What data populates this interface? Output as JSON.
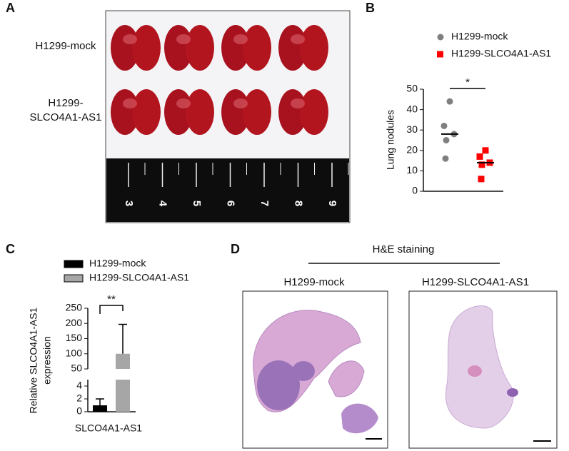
{
  "figure": {
    "panel_labels": [
      "A",
      "B",
      "C",
      "D"
    ],
    "panel_a": {
      "row_labels": [
        [
          "H1299-mock"
        ],
        [
          "H1299-",
          "SLCO4A1-AS1"
        ]
      ],
      "ruler_labels": [
        "3",
        "4",
        "5",
        "6",
        "7",
        "8",
        "9"
      ]
    },
    "panel_d": {
      "title": "H&E staining",
      "image_labels": [
        "H1299-mock",
        "H1299-SLCO4A1-AS1"
      ]
    }
  },
  "chart_data": [
    {
      "type": "scatter",
      "ylabel": "Lung nodules",
      "ylim": [
        0,
        50
      ],
      "yticks": [
        0,
        10,
        20,
        30,
        40,
        50
      ],
      "annotation": "*",
      "series": [
        {
          "name": "H1299-mock",
          "color": "#7f7f7f",
          "marker": "circle",
          "values": [
            44,
            32,
            28,
            25,
            16
          ],
          "median": 28
        },
        {
          "name": "H1299-SLCO4A1-AS1",
          "color": "#ff0000",
          "marker": "square",
          "values": [
            20,
            17,
            14,
            13,
            6
          ],
          "median": 14
        }
      ]
    },
    {
      "type": "bar",
      "ylabel": [
        "Relative SLCO4A1-AS1",
        "expression"
      ],
      "categories": [
        "SLCO4A1-AS1"
      ],
      "ylim": [
        0,
        250
      ],
      "y_break": [
        5,
        50
      ],
      "yticks": [
        0,
        2,
        4,
        50,
        100,
        150,
        200,
        250
      ],
      "annotation": "**",
      "series": [
        {
          "name": "H1299-mock",
          "color": "#000000",
          "values": [
            1
          ],
          "errors": [
            1
          ]
        },
        {
          "name": "H1299-SLCO4A1-AS1",
          "color": "#a6a6a6",
          "values": [
            100
          ],
          "errors": [
            97
          ]
        }
      ]
    }
  ]
}
